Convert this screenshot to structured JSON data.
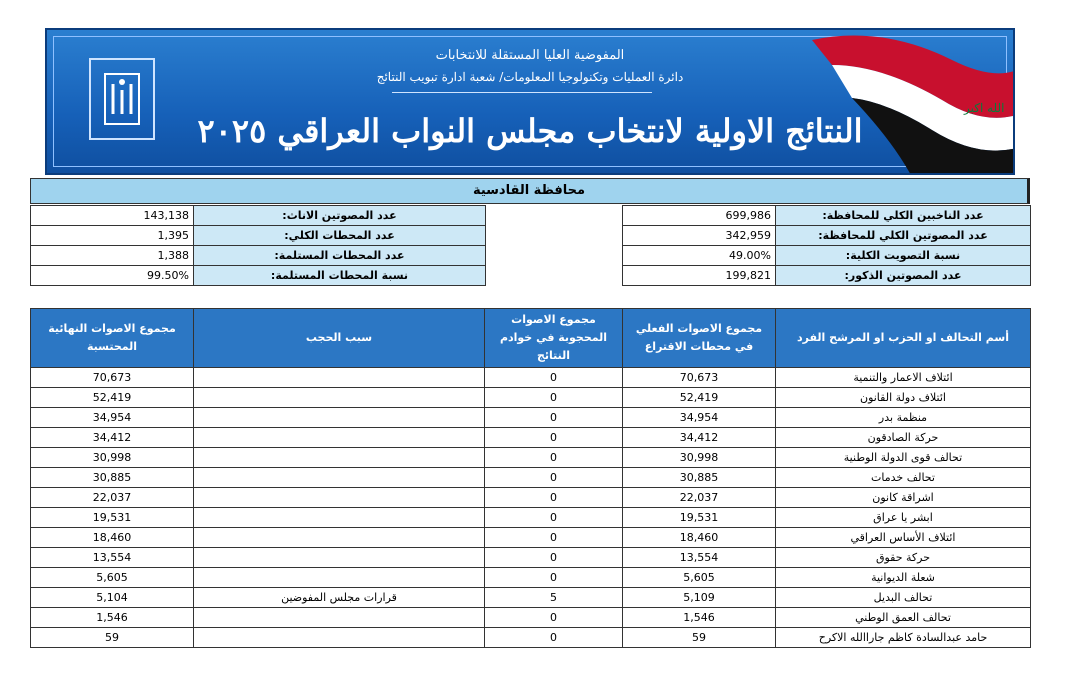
{
  "header": {
    "org": "المفوضية العليا المستقلة للانتخابات",
    "department": "دائرة العمليات وتكنولوجيا المعلومات/ شعبة ادارة تبويب النتائج",
    "title": "النتائج الاولية لانتخاب مجلس النواب العراقي ٢٠٢٥"
  },
  "province": "محافظة القادسية",
  "stats_right": [
    [
      "عدد الناخبين الكلي للمحافظة:",
      "699,986"
    ],
    [
      "عدد المصوتين الكلي للمحافظة:",
      "342,959"
    ],
    [
      "نسبة التصويت الكلية:",
      "49.00%"
    ],
    [
      "عدد المصوتين الذكور:",
      "199,821"
    ]
  ],
  "stats_left": [
    [
      "عدد المصوتين الاناث:",
      "143,138"
    ],
    [
      "عدد المحطات الكلي:",
      "1,395"
    ],
    [
      "عدد المحطات المستلمة:",
      "1,388"
    ],
    [
      "نسبة المحطات المستلمة:",
      "99.50%"
    ]
  ],
  "table": {
    "columns": [
      "أسم التحالف او الحزب او المرشح الفرد",
      "مجموع الاصوات الفعلي في محطات الاقتراع",
      "مجموع الاصوات المحجوبة في خوادم النتائج",
      "سبب الحجب",
      "مجموع الاصوات النهائية المحتسبة"
    ],
    "rows": [
      [
        "ائتلاف الاعمار والتنمية",
        "70,673",
        "0",
        "",
        "70,673"
      ],
      [
        "ائتلاف دولة القانون",
        "52,419",
        "0",
        "",
        "52,419"
      ],
      [
        "منظمة بدر",
        "34,954",
        "0",
        "",
        "34,954"
      ],
      [
        "حركة الصادقون",
        "34,412",
        "0",
        "",
        "34,412"
      ],
      [
        "تحالف قوى الدولة الوطنية",
        "30,998",
        "0",
        "",
        "30,998"
      ],
      [
        "تحالف خدمات",
        "30,885",
        "0",
        "",
        "30,885"
      ],
      [
        "اشراقة كانون",
        "22,037",
        "0",
        "",
        "22,037"
      ],
      [
        "ابشر يا عراق",
        "19,531",
        "0",
        "",
        "19,531"
      ],
      [
        "ائتلاف الأساس العراقي",
        "18,460",
        "0",
        "",
        "18,460"
      ],
      [
        "حركة حقوق",
        "13,554",
        "0",
        "",
        "13,554"
      ],
      [
        "شعلة الديوانية",
        "5,605",
        "0",
        "",
        "5,605"
      ],
      [
        "تحالف البديل",
        "5,109",
        "5",
        "قرارات مجلس المفوضين",
        "5,104"
      ],
      [
        "تحالف العمق الوطني",
        "1,546",
        "0",
        "",
        "1,546"
      ],
      [
        "حامد عبدالسادة كاظم جاراالله الاكرح",
        "59",
        "0",
        "",
        "59"
      ]
    ]
  }
}
